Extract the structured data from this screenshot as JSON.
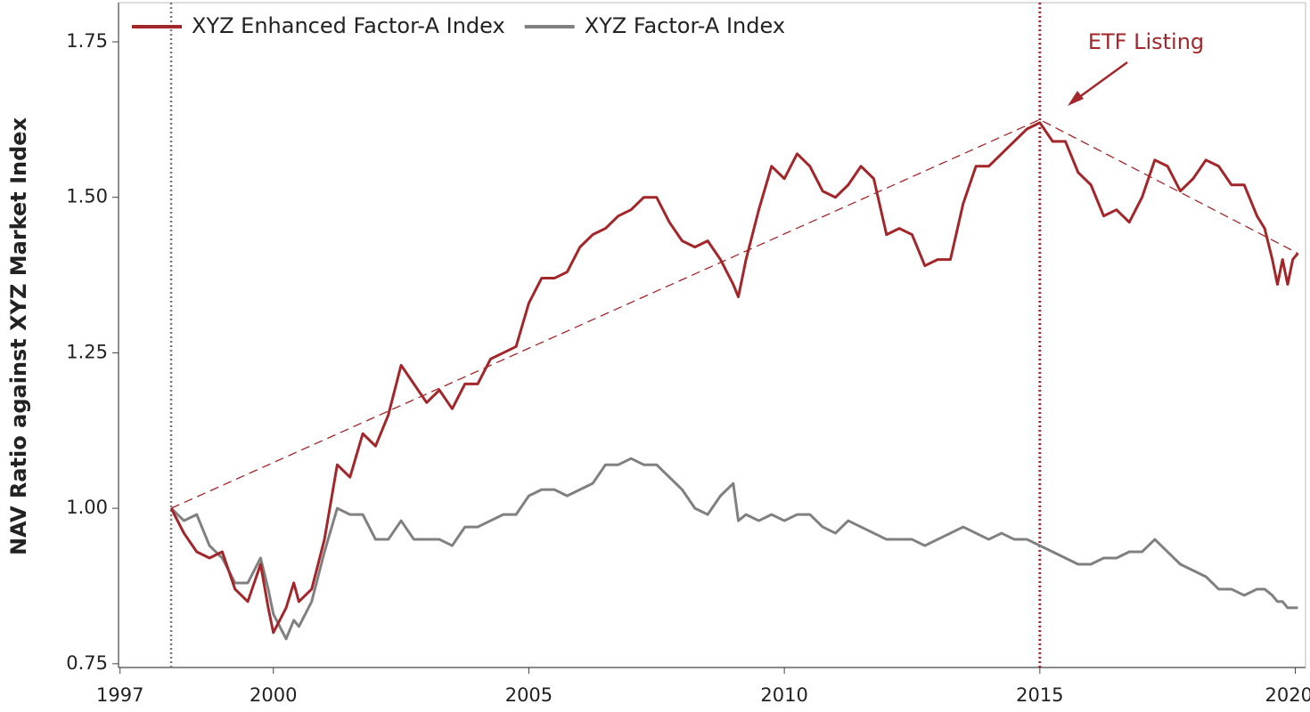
{
  "chart_data": {
    "type": "line",
    "y_label": "NAV Ratio against XYZ Market Index",
    "annotation": "ETF Listing",
    "legend": "top-left",
    "xlim": [
      1996.97,
      2020.2
    ],
    "ylim": [
      0.744,
      1.813
    ],
    "xticks": [
      1997,
      2000,
      2005,
      2010,
      2015,
      2020
    ],
    "yticks": [
      0.75,
      {
        "value": 1,
        "label": "1.00"
      },
      1.25,
      {
        "value": 1.5,
        "label": "1.50"
      },
      1.75
    ],
    "x": [
      1998.0,
      1998.25,
      1998.5,
      1998.75,
      1999.0,
      1999.25,
      1999.5,
      1999.75,
      1999.9,
      2000.0,
      2000.25,
      2000.4,
      2000.5,
      2000.75,
      2001.0,
      2001.25,
      2001.5,
      2001.75,
      2002.0,
      2002.25,
      2002.5,
      2002.75,
      2003.0,
      2003.25,
      2003.5,
      2003.75,
      2004.0,
      2004.25,
      2004.5,
      2004.75,
      2005.0,
      2005.25,
      2005.5,
      2005.75,
      2006.0,
      2006.25,
      2006.5,
      2006.75,
      2007.0,
      2007.25,
      2007.5,
      2007.75,
      2008.0,
      2008.25,
      2008.5,
      2008.75,
      2009.0,
      2009.1,
      2009.25,
      2009.5,
      2009.75,
      2010.0,
      2010.25,
      2010.5,
      2010.75,
      2011.0,
      2011.25,
      2011.5,
      2011.75,
      2012.0,
      2012.25,
      2012.5,
      2012.75,
      2013.0,
      2013.25,
      2013.5,
      2013.75,
      2014.0,
      2014.25,
      2014.5,
      2014.75,
      2015.0,
      2015.25,
      2015.5,
      2015.75,
      2016.0,
      2016.25,
      2016.5,
      2016.75,
      2017.0,
      2017.25,
      2017.5,
      2017.75,
      2018.0,
      2018.25,
      2018.5,
      2018.75,
      2019.0,
      2019.25,
      2019.4,
      2019.55,
      2019.65,
      2019.75,
      2019.85,
      2019.95,
      2020.05
    ],
    "series": [
      {
        "name": "XYZ Enhanced Factor-A Index",
        "color": "#a3262a",
        "values": [
          1.0,
          0.96,
          0.93,
          0.92,
          0.93,
          0.87,
          0.85,
          0.91,
          0.84,
          0.8,
          0.84,
          0.88,
          0.85,
          0.87,
          0.95,
          1.07,
          1.05,
          1.12,
          1.1,
          1.15,
          1.23,
          1.2,
          1.17,
          1.19,
          1.16,
          1.2,
          1.2,
          1.24,
          1.25,
          1.26,
          1.33,
          1.37,
          1.37,
          1.38,
          1.42,
          1.44,
          1.45,
          1.47,
          1.48,
          1.5,
          1.5,
          1.46,
          1.43,
          1.42,
          1.43,
          1.4,
          1.36,
          1.34,
          1.4,
          1.48,
          1.55,
          1.53,
          1.57,
          1.55,
          1.51,
          1.5,
          1.52,
          1.55,
          1.53,
          1.44,
          1.45,
          1.44,
          1.39,
          1.4,
          1.4,
          1.49,
          1.55,
          1.55,
          1.57,
          1.59,
          1.61,
          1.62,
          1.59,
          1.59,
          1.54,
          1.52,
          1.47,
          1.48,
          1.46,
          1.5,
          1.56,
          1.55,
          1.51,
          1.53,
          1.56,
          1.55,
          1.52,
          1.52,
          1.47,
          1.45,
          1.4,
          1.36,
          1.4,
          1.36,
          1.4,
          1.41
        ]
      },
      {
        "name": "XYZ Factor-A Index",
        "color": "#808080",
        "values": [
          1.0,
          0.98,
          0.99,
          0.94,
          0.92,
          0.88,
          0.88,
          0.92,
          0.87,
          0.83,
          0.79,
          0.82,
          0.81,
          0.85,
          0.93,
          1.0,
          0.99,
          0.99,
          0.95,
          0.95,
          0.98,
          0.95,
          0.95,
          0.95,
          0.94,
          0.97,
          0.97,
          0.98,
          0.99,
          0.99,
          1.02,
          1.03,
          1.03,
          1.02,
          1.03,
          1.04,
          1.07,
          1.07,
          1.08,
          1.07,
          1.07,
          1.05,
          1.03,
          1.0,
          0.99,
          1.02,
          1.04,
          0.98,
          0.99,
          0.98,
          0.99,
          0.98,
          0.99,
          0.99,
          0.97,
          0.96,
          0.98,
          0.97,
          0.96,
          0.95,
          0.95,
          0.95,
          0.94,
          0.95,
          0.96,
          0.97,
          0.96,
          0.95,
          0.96,
          0.95,
          0.95,
          0.94,
          0.93,
          0.92,
          0.91,
          0.91,
          0.92,
          0.92,
          0.93,
          0.93,
          0.95,
          0.93,
          0.91,
          0.9,
          0.89,
          0.87,
          0.87,
          0.86,
          0.87,
          0.87,
          0.86,
          0.85,
          0.85,
          0.84,
          0.84,
          0.84
        ]
      }
    ],
    "reference_lines": [
      {
        "x": 1998.0,
        "color": "#777777"
      },
      {
        "x": 2015.0,
        "color": "#a3262a"
      }
    ],
    "trend_lines": [
      {
        "color": "#a3262a",
        "x": [
          1998.0,
          2015.0,
          2020.05
        ],
        "y": [
          1.0,
          1.625,
          1.41
        ]
      }
    ]
  }
}
